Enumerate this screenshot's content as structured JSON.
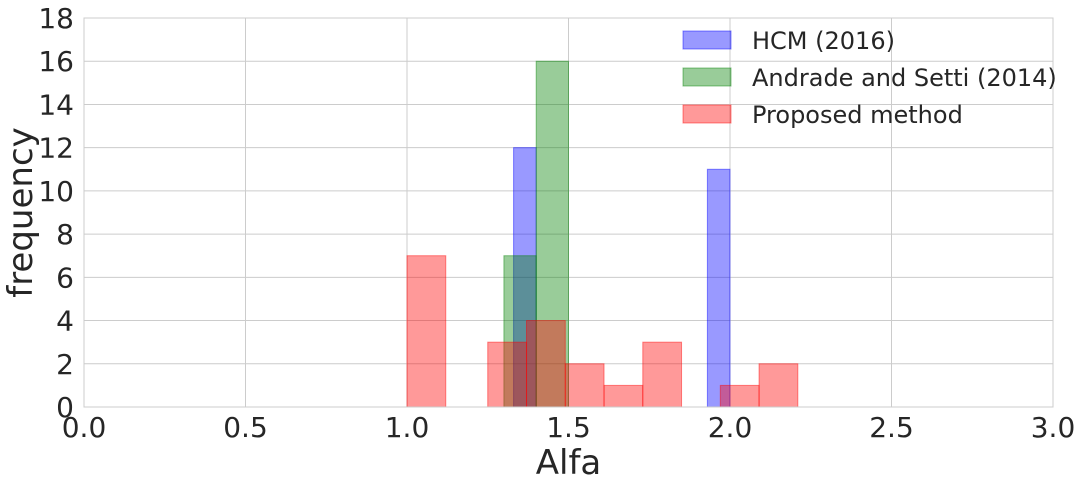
{
  "chart_data": {
    "type": "bar",
    "title": "",
    "xlabel": "Alfa",
    "ylabel": "frequency",
    "xlim": [
      0.0,
      3.0
    ],
    "ylim": [
      0,
      18
    ],
    "xticks": [
      "0.0",
      "0.5",
      "1.0",
      "1.5",
      "2.0",
      "2.5",
      "3.0"
    ],
    "yticks": [
      "0",
      "2",
      "4",
      "6",
      "8",
      "10",
      "12",
      "14",
      "16",
      "18"
    ],
    "grid": true,
    "legend_position": "top-right",
    "series": [
      {
        "name": "HCM (2016)",
        "color": "#0000ff",
        "bins": [
          {
            "x0": 1.33,
            "x1": 1.4,
            "count": 12
          },
          {
            "x0": 1.93,
            "x1": 2.0,
            "count": 11
          }
        ]
      },
      {
        "name": "Andrade and Setti (2014)",
        "color": "#008000",
        "bins": [
          {
            "x0": 1.3,
            "x1": 1.4,
            "count": 7
          },
          {
            "x0": 1.4,
            "x1": 1.5,
            "count": 16
          }
        ]
      },
      {
        "name": "Proposed method",
        "color": "#ff0000",
        "bins": [
          {
            "x0": 1.0,
            "x1": 1.12,
            "count": 7
          },
          {
            "x0": 1.25,
            "x1": 1.37,
            "count": 3
          },
          {
            "x0": 1.37,
            "x1": 1.49,
            "count": 4
          },
          {
            "x0": 1.49,
            "x1": 1.61,
            "count": 2
          },
          {
            "x0": 1.61,
            "x1": 1.73,
            "count": 1
          },
          {
            "x0": 1.73,
            "x1": 1.85,
            "count": 3
          },
          {
            "x0": 1.85,
            "x1": 1.97,
            "count": 0
          },
          {
            "x0": 1.97,
            "x1": 2.09,
            "count": 1
          },
          {
            "x0": 2.09,
            "x1": 2.21,
            "count": 2
          }
        ]
      }
    ]
  }
}
